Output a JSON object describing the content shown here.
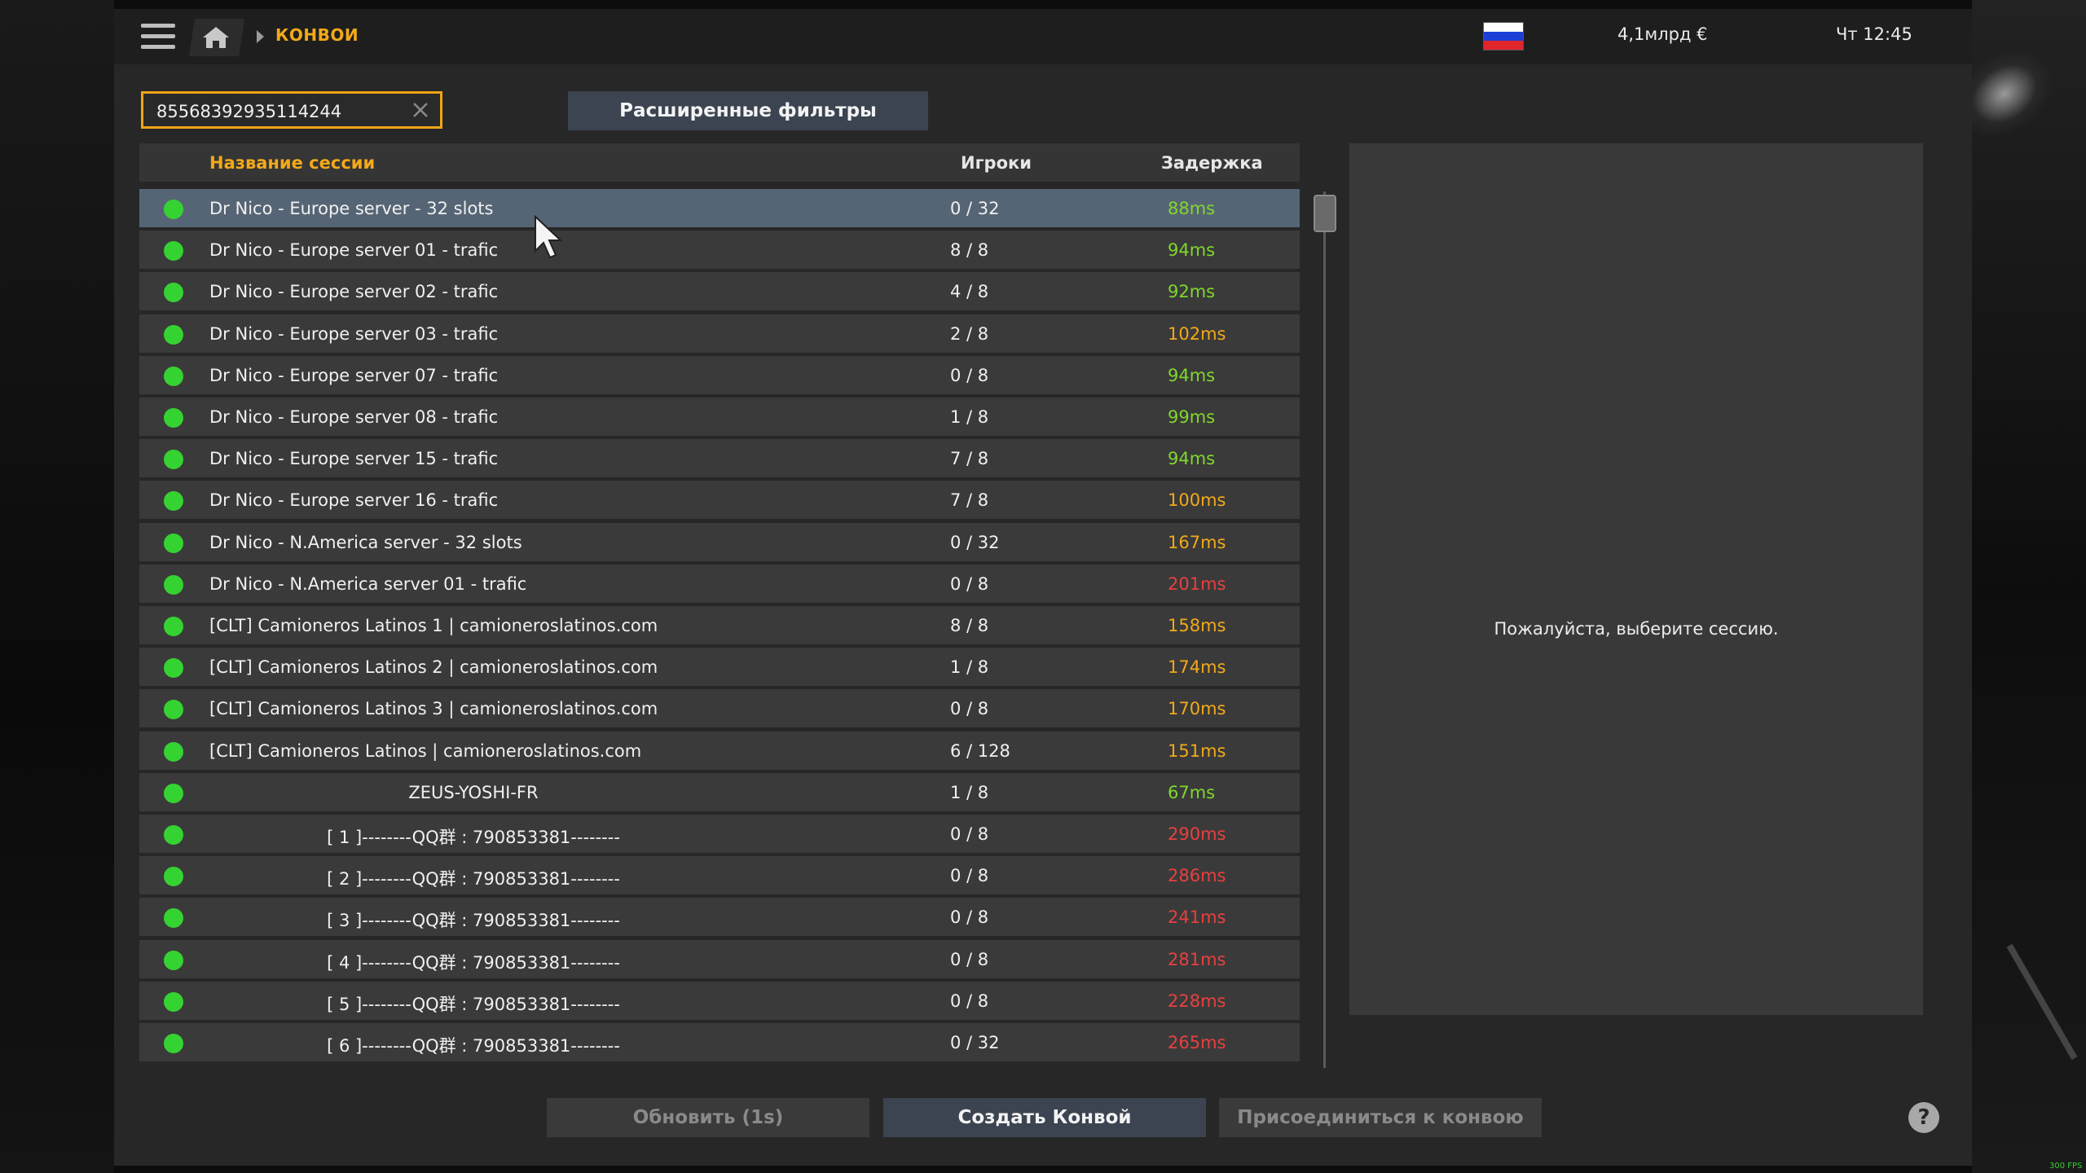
{
  "topbar": {
    "breadcrumb": "КОНВОИ",
    "money": "4,1млрд €",
    "clock": "Чт 12:45"
  },
  "search": {
    "value": "85568392935114244"
  },
  "filters_label": "Расширенные фильтры",
  "columns": {
    "name": "Название сессии",
    "players": "Игроки",
    "ping": "Задержка"
  },
  "colors": {
    "ping_good": "#7fd82c",
    "ping_mid": "#f2a91a",
    "ping_bad": "#e84040",
    "accent": "#f2a91a"
  },
  "sessions": [
    {
      "name": "Dr Nico - Europe server - 32 slots",
      "players": "0 / 32",
      "ping": "88ms",
      "ping_color": "#7fd82c",
      "selected": true
    },
    {
      "name": "Dr Nico - Europe server 01 - trafic",
      "players": "8 / 8",
      "ping": "94ms",
      "ping_color": "#7fd82c"
    },
    {
      "name": "Dr Nico - Europe server 02 - trafic",
      "players": "4 / 8",
      "ping": "92ms",
      "ping_color": "#7fd82c"
    },
    {
      "name": "Dr Nico - Europe server 03 - trafic",
      "players": "2 / 8",
      "ping": "102ms",
      "ping_color": "#f2a91a"
    },
    {
      "name": "Dr Nico - Europe server 07 - trafic",
      "players": "0 / 8",
      "ping": "94ms",
      "ping_color": "#7fd82c"
    },
    {
      "name": "Dr Nico - Europe server 08 - trafic",
      "players": "1 / 8",
      "ping": "99ms",
      "ping_color": "#7fd82c"
    },
    {
      "name": "Dr Nico - Europe server 15 - trafic",
      "players": "7 / 8",
      "ping": "94ms",
      "ping_color": "#7fd82c"
    },
    {
      "name": "Dr Nico - Europe server 16 - trafic",
      "players": "7 / 8",
      "ping": "100ms",
      "ping_color": "#f2a91a"
    },
    {
      "name": "Dr Nico - N.America server - 32 slots",
      "players": "0 / 32",
      "ping": "167ms",
      "ping_color": "#f2a91a"
    },
    {
      "name": "Dr Nico - N.America server 01 - trafic",
      "players": "0 / 8",
      "ping": "201ms",
      "ping_color": "#e84040"
    },
    {
      "name": "[CLT] Camioneros Latinos 1 | camioneroslatinos.com",
      "players": "8 / 8",
      "ping": "158ms",
      "ping_color": "#f2a91a"
    },
    {
      "name": "[CLT] Camioneros Latinos 2 | camioneroslatinos.com",
      "players": "1 / 8",
      "ping": "174ms",
      "ping_color": "#f2a91a"
    },
    {
      "name": "[CLT] Camioneros Latinos 3 | camioneroslatinos.com",
      "players": "0 / 8",
      "ping": "170ms",
      "ping_color": "#f2a91a"
    },
    {
      "name": "[CLT] Camioneros Latinos | camioneroslatinos.com",
      "players": "6 / 128",
      "ping": "151ms",
      "ping_color": "#f2a91a"
    },
    {
      "name": "ZEUS-YOSHI-FR",
      "players": "1 / 8",
      "ping": "67ms",
      "ping_color": "#7fd82c",
      "centered": true
    },
    {
      "name": "[ 1 ]--------QQ群 : 790853381--------",
      "players": "0 / 8",
      "ping": "290ms",
      "ping_color": "#e84040",
      "centered": true
    },
    {
      "name": "[ 2 ]--------QQ群 : 790853381--------",
      "players": "0 / 8",
      "ping": "286ms",
      "ping_color": "#e84040",
      "centered": true
    },
    {
      "name": "[ 3 ]--------QQ群 : 790853381--------",
      "players": "0 / 8",
      "ping": "241ms",
      "ping_color": "#e84040",
      "centered": true
    },
    {
      "name": "[ 4 ]--------QQ群 : 790853381--------",
      "players": "0 / 8",
      "ping": "281ms",
      "ping_color": "#e84040",
      "centered": true
    },
    {
      "name": "[ 5 ]--------QQ群 : 790853381--------",
      "players": "0 / 8",
      "ping": "228ms",
      "ping_color": "#e84040",
      "centered": true
    },
    {
      "name": "[ 6 ]--------QQ群 : 790853381--------",
      "players": "0 / 32",
      "ping": "265ms",
      "ping_color": "#e84040",
      "centered": true
    }
  ],
  "details": {
    "message": "Пожалуйста, выберите сессию."
  },
  "buttons": {
    "refresh": "Обновить (1s)",
    "create": "Создать Конвой",
    "join": "Присоединиться к конвою",
    "help": "?"
  },
  "fps": "300 FPS"
}
